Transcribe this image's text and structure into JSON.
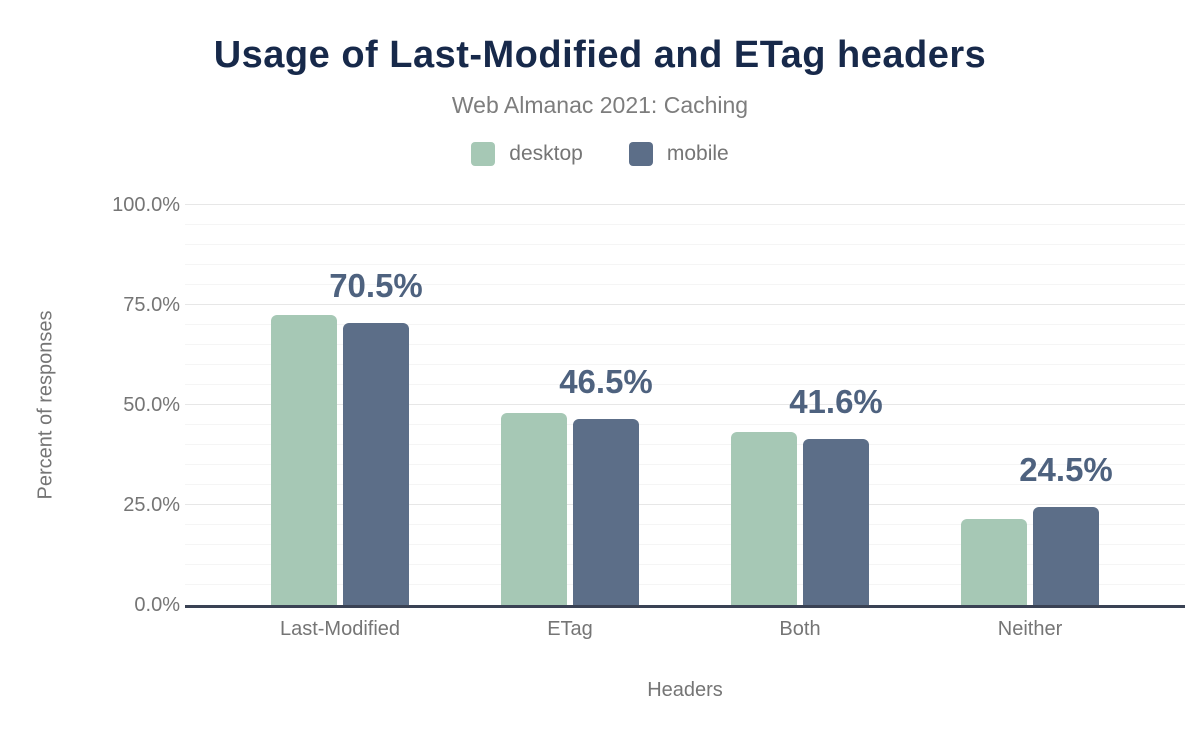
{
  "chart_data": {
    "type": "bar",
    "title": "Usage of Last-Modified and ETag headers",
    "subtitle": "Web Almanac 2021: Caching",
    "xlabel": "Headers",
    "ylabel": "Percent of responses",
    "categories": [
      "Last-Modified",
      "ETag",
      "Both",
      "Neither"
    ],
    "series": [
      {
        "name": "desktop",
        "color": "#a6c8b5",
        "values": [
          72.5,
          47.9,
          43.3,
          21.6
        ]
      },
      {
        "name": "mobile",
        "color": "#5c6e88",
        "values": [
          70.5,
          46.5,
          41.6,
          24.5
        ]
      }
    ],
    "bar_labels": {
      "labeled_series": "mobile",
      "values": [
        "70.5%",
        "46.5%",
        "41.6%",
        "24.5%"
      ]
    },
    "ylim": [
      0,
      100
    ],
    "yticks": [
      {
        "value": 0,
        "label": "0.0%"
      },
      {
        "value": 25,
        "label": "25.0%"
      },
      {
        "value": 50,
        "label": "50.0%"
      },
      {
        "value": 75,
        "label": "75.0%"
      },
      {
        "value": 100,
        "label": "100.0%"
      }
    ],
    "grid": {
      "on": true,
      "minor_step": 5,
      "major_step": 25
    },
    "legend_position": "top"
  },
  "colors": {
    "background": "#ffffff",
    "title": "#17294a",
    "subtitle": "#7d7d7d",
    "axis_text": "#757575",
    "value_label": "#4e627f",
    "axis_line": "#3a4254",
    "grid_major": "#e7e7e7",
    "grid_minor": "#f5f5f5"
  }
}
